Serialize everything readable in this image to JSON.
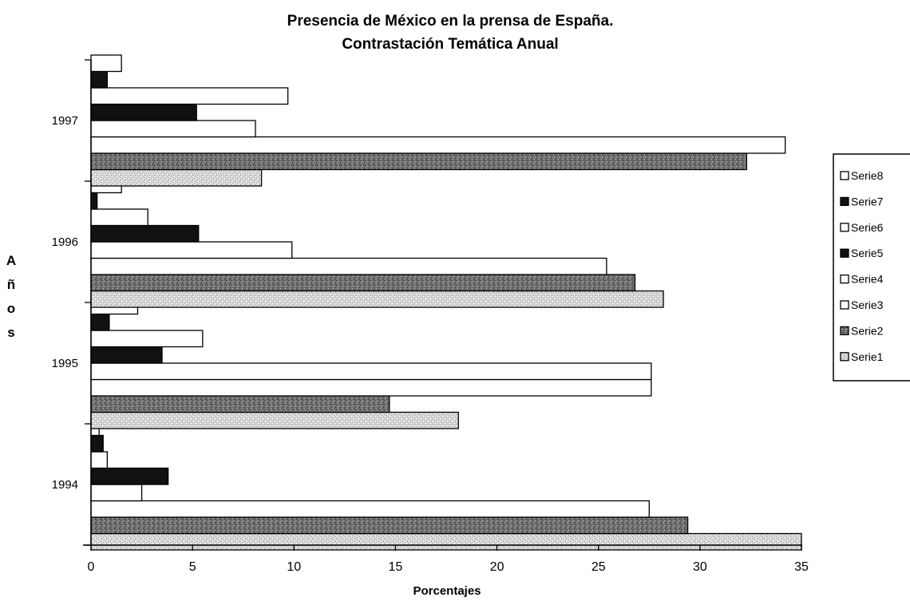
{
  "chart_data": {
    "type": "bar",
    "orientation": "horizontal",
    "title": [
      "Presencia de México en la prensa de España.",
      "Contrastación Temática Anual"
    ],
    "xlabel": "Porcentajes",
    "ylabel": "Años",
    "xlim": [
      0,
      35
    ],
    "xticks": [
      "0",
      "5",
      "10",
      "15",
      "20",
      "25",
      "30",
      "35"
    ],
    "grid": false,
    "legend_position": "right",
    "categories": [
      "1994",
      "1995",
      "1996",
      "1997"
    ],
    "series": [
      {
        "name": "Serie1",
        "values": [
          35.0,
          18.1,
          28.2,
          8.4
        ],
        "color": "#d6d6d6",
        "pattern": "speckle-light"
      },
      {
        "name": "Serie2",
        "values": [
          29.4,
          14.7,
          26.8,
          32.3
        ],
        "color": "#6e6e6e",
        "pattern": "speckle-dark"
      },
      {
        "name": "Serie3",
        "values": [
          27.5,
          27.6,
          25.4,
          34.2
        ],
        "color": "#ffffff",
        "pattern": "none"
      },
      {
        "name": "Serie4",
        "values": [
          2.5,
          27.6,
          9.9,
          8.1
        ],
        "color": "#ffffff",
        "pattern": "none"
      },
      {
        "name": "Serie5",
        "values": [
          3.8,
          3.5,
          5.3,
          5.2
        ],
        "color": "#111111",
        "pattern": "none"
      },
      {
        "name": "Serie6",
        "values": [
          0.8,
          5.5,
          2.8,
          9.7
        ],
        "color": "#ffffff",
        "pattern": "none"
      },
      {
        "name": "Serie7",
        "values": [
          0.6,
          0.9,
          0.3,
          0.8
        ],
        "color": "#111111",
        "pattern": "none"
      },
      {
        "name": "Serie8",
        "values": [
          0.4,
          2.3,
          1.5,
          1.5
        ],
        "color": "#ffffff",
        "pattern": "none"
      }
    ]
  }
}
